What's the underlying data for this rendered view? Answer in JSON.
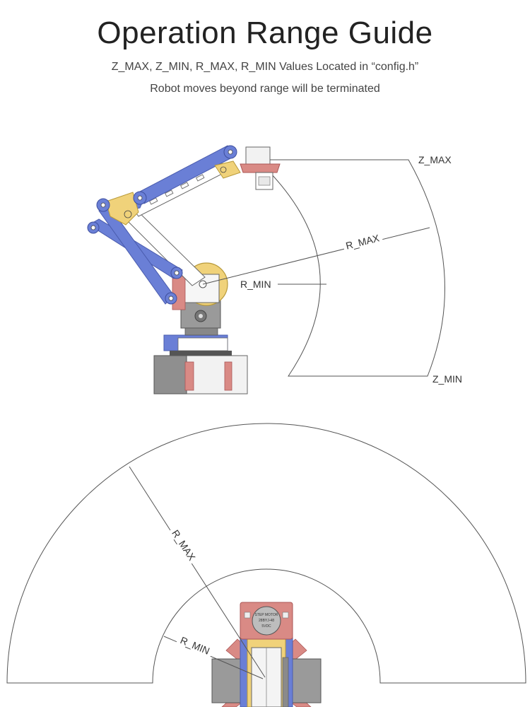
{
  "header": {
    "title": "Operation Range Guide",
    "subtitle": "Z_MAX, Z_MIN, R_MAX, R_MIN Values Located in “config.h”",
    "note": "Robot moves beyond range will be terminated"
  },
  "side_view": {
    "labels": {
      "z_max": "Z_MAX",
      "z_min": "Z_MIN",
      "r_max": "R_MAX",
      "r_min": "R_MIN"
    }
  },
  "top_view": {
    "labels": {
      "r_max": "R_MAX",
      "r_min": "R_MIN"
    },
    "motor_label": {
      "line1": "STEP MOTOR",
      "line2": "28BYJ-48",
      "line3": "5VDC"
    }
  },
  "colors": {
    "blue": "#6a7fd6",
    "yellow": "#f0d27a",
    "red": "#d98a85",
    "gray": "#8f8f8f",
    "line": "#555555"
  }
}
